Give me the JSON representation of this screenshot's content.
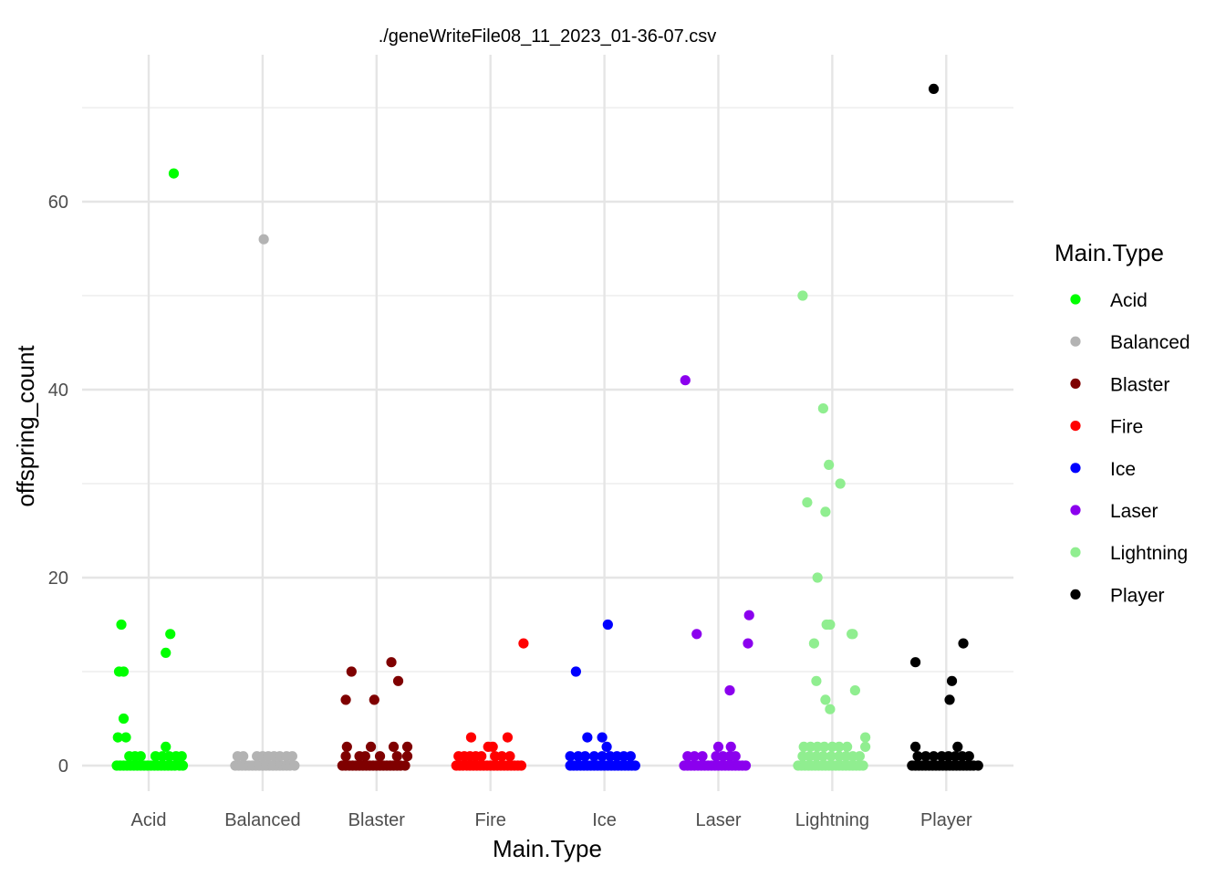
{
  "chart_data": {
    "type": "scatter",
    "title": "./geneWriteFile08_11_2023_01-36-07.csv",
    "xlabel": "Main.Type",
    "ylabel": "offspring_count",
    "categories": [
      "Acid",
      "Balanced",
      "Blaster",
      "Fire",
      "Ice",
      "Laser",
      "Lightning",
      "Player"
    ],
    "yticks": [
      0,
      20,
      40,
      60
    ],
    "ylim": [
      -2.8,
      75
    ],
    "grid": true,
    "legend": {
      "title": "Main.Type",
      "placement": "right",
      "items": [
        {
          "label": "Acid",
          "color": "#00ff00"
        },
        {
          "label": "Balanced",
          "color": "#b3b3b3"
        },
        {
          "label": "Blaster",
          "color": "#7f0000"
        },
        {
          "label": "Fire",
          "color": "#ff0000"
        },
        {
          "label": "Ice",
          "color": "#0000ff"
        },
        {
          "label": "Laser",
          "color": "#8b00ee"
        },
        {
          "label": "Lightning",
          "color": "#90ee90"
        },
        {
          "label": "Player",
          "color": "#000000"
        }
      ]
    },
    "series": [
      {
        "name": "Acid",
        "color": "#00ff00",
        "points": [
          [
            0.22,
            63
          ],
          [
            -0.24,
            15
          ],
          [
            0.19,
            14
          ],
          [
            0.15,
            12
          ],
          [
            -0.26,
            10
          ],
          [
            -0.22,
            10
          ],
          [
            -0.22,
            5
          ],
          [
            -0.27,
            3
          ],
          [
            -0.2,
            3
          ],
          [
            0.15,
            2
          ],
          [
            -0.28,
            0
          ],
          [
            -0.25,
            0
          ],
          [
            -0.22,
            0
          ],
          [
            -0.19,
            0
          ],
          [
            -0.16,
            0
          ],
          [
            -0.13,
            0
          ],
          [
            -0.1,
            0
          ],
          [
            -0.07,
            0
          ],
          [
            -0.04,
            0
          ],
          [
            -0.01,
            0
          ],
          [
            0.02,
            0
          ],
          [
            0.05,
            0
          ],
          [
            0.08,
            0
          ],
          [
            0.11,
            0
          ],
          [
            0.14,
            0
          ],
          [
            0.17,
            0
          ],
          [
            0.2,
            0
          ],
          [
            0.23,
            0
          ],
          [
            0.27,
            0
          ],
          [
            0.3,
            0
          ],
          [
            -0.17,
            1
          ],
          [
            -0.12,
            1
          ],
          [
            -0.07,
            1
          ],
          [
            0.06,
            1
          ],
          [
            0.12,
            1
          ],
          [
            0.18,
            1
          ],
          [
            0.24,
            1
          ],
          [
            0.29,
            1
          ]
        ]
      },
      {
        "name": "Balanced",
        "color": "#b3b3b3",
        "points": [
          [
            0.01,
            56
          ],
          [
            -0.24,
            0
          ],
          [
            -0.21,
            0
          ],
          [
            -0.18,
            0
          ],
          [
            -0.15,
            0
          ],
          [
            -0.12,
            0
          ],
          [
            -0.09,
            0
          ],
          [
            -0.06,
            0
          ],
          [
            -0.03,
            0
          ],
          [
            0.0,
            0
          ],
          [
            0.03,
            0
          ],
          [
            0.06,
            0
          ],
          [
            0.09,
            0
          ],
          [
            0.12,
            0
          ],
          [
            0.15,
            0
          ],
          [
            0.18,
            0
          ],
          [
            0.21,
            0
          ],
          [
            0.24,
            0
          ],
          [
            0.28,
            0
          ],
          [
            -0.22,
            1
          ],
          [
            -0.17,
            1
          ],
          [
            -0.05,
            1
          ],
          [
            0.0,
            1
          ],
          [
            0.05,
            1
          ],
          [
            0.1,
            1
          ],
          [
            0.15,
            1
          ],
          [
            0.21,
            1
          ],
          [
            0.26,
            1
          ]
        ]
      },
      {
        "name": "Blaster",
        "color": "#7f0000",
        "points": [
          [
            0.13,
            11
          ],
          [
            -0.22,
            10
          ],
          [
            0.19,
            9
          ],
          [
            -0.27,
            7
          ],
          [
            -0.02,
            7
          ],
          [
            -0.26,
            2
          ],
          [
            -0.05,
            2
          ],
          [
            0.15,
            2
          ],
          [
            0.27,
            2
          ],
          [
            -0.3,
            0
          ],
          [
            -0.27,
            0
          ],
          [
            -0.24,
            0
          ],
          [
            -0.21,
            0
          ],
          [
            -0.18,
            0
          ],
          [
            -0.15,
            0
          ],
          [
            -0.12,
            0
          ],
          [
            -0.09,
            0
          ],
          [
            -0.06,
            0
          ],
          [
            -0.03,
            0
          ],
          [
            0.0,
            0
          ],
          [
            0.03,
            0
          ],
          [
            0.06,
            0
          ],
          [
            0.09,
            0
          ],
          [
            0.12,
            0
          ],
          [
            0.15,
            0
          ],
          [
            0.18,
            0
          ],
          [
            0.21,
            0
          ],
          [
            0.25,
            0
          ],
          [
            -0.27,
            1
          ],
          [
            -0.15,
            1
          ],
          [
            -0.1,
            1
          ],
          [
            0.03,
            1
          ],
          [
            0.18,
            1
          ],
          [
            0.27,
            1
          ]
        ]
      },
      {
        "name": "Fire",
        "color": "#ff0000",
        "points": [
          [
            0.29,
            13
          ],
          [
            -0.17,
            3
          ],
          [
            0.15,
            3
          ],
          [
            -0.02,
            2
          ],
          [
            0.02,
            2
          ],
          [
            -0.3,
            0
          ],
          [
            -0.27,
            0
          ],
          [
            -0.24,
            0
          ],
          [
            -0.21,
            0
          ],
          [
            -0.18,
            0
          ],
          [
            -0.15,
            0
          ],
          [
            -0.12,
            0
          ],
          [
            -0.09,
            0
          ],
          [
            -0.06,
            0
          ],
          [
            -0.03,
            0
          ],
          [
            0.0,
            0
          ],
          [
            0.03,
            0
          ],
          [
            0.06,
            0
          ],
          [
            0.09,
            0
          ],
          [
            0.12,
            0
          ],
          [
            0.15,
            0
          ],
          [
            0.18,
            0
          ],
          [
            0.21,
            0
          ],
          [
            0.24,
            0
          ],
          [
            0.27,
            0
          ],
          [
            -0.28,
            1
          ],
          [
            -0.23,
            1
          ],
          [
            -0.18,
            1
          ],
          [
            -0.13,
            1
          ],
          [
            -0.08,
            1
          ],
          [
            0.04,
            1
          ],
          [
            0.1,
            1
          ],
          [
            0.17,
            1
          ]
        ]
      },
      {
        "name": "Ice",
        "color": "#0000ff",
        "points": [
          [
            0.03,
            15
          ],
          [
            -0.25,
            10
          ],
          [
            -0.15,
            3
          ],
          [
            -0.02,
            3
          ],
          [
            0.02,
            2
          ],
          [
            -0.3,
            0
          ],
          [
            -0.27,
            0
          ],
          [
            -0.24,
            0
          ],
          [
            -0.21,
            0
          ],
          [
            -0.18,
            0
          ],
          [
            -0.15,
            0
          ],
          [
            -0.12,
            0
          ],
          [
            -0.09,
            0
          ],
          [
            -0.06,
            0
          ],
          [
            -0.03,
            0
          ],
          [
            0.0,
            0
          ],
          [
            0.03,
            0
          ],
          [
            0.06,
            0
          ],
          [
            0.09,
            0
          ],
          [
            0.12,
            0
          ],
          [
            0.15,
            0
          ],
          [
            0.18,
            0
          ],
          [
            0.21,
            0
          ],
          [
            0.24,
            0
          ],
          [
            0.27,
            0
          ],
          [
            -0.3,
            1
          ],
          [
            -0.23,
            1
          ],
          [
            -0.17,
            1
          ],
          [
            -0.09,
            1
          ],
          [
            -0.02,
            1
          ],
          [
            0.05,
            1
          ],
          [
            0.11,
            1
          ],
          [
            0.17,
            1
          ],
          [
            0.23,
            1
          ]
        ]
      },
      {
        "name": "Laser",
        "color": "#8b00ee",
        "points": [
          [
            -0.29,
            41
          ],
          [
            0.27,
            16
          ],
          [
            -0.19,
            14
          ],
          [
            0.26,
            13
          ],
          [
            0.1,
            8
          ],
          [
            0.0,
            2
          ],
          [
            0.11,
            2
          ],
          [
            -0.3,
            0
          ],
          [
            -0.27,
            0
          ],
          [
            -0.24,
            0
          ],
          [
            -0.21,
            0
          ],
          [
            -0.18,
            0
          ],
          [
            -0.15,
            0
          ],
          [
            -0.12,
            0
          ],
          [
            -0.09,
            0
          ],
          [
            -0.06,
            0
          ],
          [
            -0.03,
            0
          ],
          [
            0.0,
            0
          ],
          [
            0.03,
            0
          ],
          [
            0.06,
            0
          ],
          [
            0.09,
            0
          ],
          [
            0.12,
            0
          ],
          [
            0.15,
            0
          ],
          [
            0.18,
            0
          ],
          [
            0.21,
            0
          ],
          [
            0.24,
            0
          ],
          [
            -0.27,
            1
          ],
          [
            -0.21,
            1
          ],
          [
            -0.14,
            1
          ],
          [
            -0.02,
            1
          ],
          [
            0.04,
            1
          ],
          [
            0.1,
            1
          ],
          [
            0.15,
            1
          ]
        ]
      },
      {
        "name": "Lightning",
        "color": "#90ee90",
        "points": [
          [
            -0.26,
            50
          ],
          [
            -0.08,
            38
          ],
          [
            -0.03,
            32
          ],
          [
            0.07,
            30
          ],
          [
            -0.22,
            28
          ],
          [
            -0.06,
            27
          ],
          [
            -0.13,
            20
          ],
          [
            -0.05,
            15
          ],
          [
            -0.02,
            15
          ],
          [
            0.18,
            14
          ],
          [
            0.17,
            14
          ],
          [
            -0.16,
            13
          ],
          [
            -0.14,
            9
          ],
          [
            0.2,
            8
          ],
          [
            -0.06,
            7
          ],
          [
            -0.02,
            6
          ],
          [
            0.29,
            3
          ],
          [
            0.29,
            2
          ],
          [
            -0.3,
            0
          ],
          [
            -0.27,
            0
          ],
          [
            -0.24,
            0
          ],
          [
            -0.21,
            0
          ],
          [
            -0.18,
            0
          ],
          [
            -0.15,
            0
          ],
          [
            -0.12,
            0
          ],
          [
            -0.09,
            0
          ],
          [
            -0.06,
            0
          ],
          [
            -0.03,
            0
          ],
          [
            0.0,
            0
          ],
          [
            0.03,
            0
          ],
          [
            0.06,
            0
          ],
          [
            0.09,
            0
          ],
          [
            0.12,
            0
          ],
          [
            0.15,
            0
          ],
          [
            0.18,
            0
          ],
          [
            0.21,
            0
          ],
          [
            0.24,
            0
          ],
          [
            0.27,
            0
          ],
          [
            -0.26,
            1
          ],
          [
            -0.2,
            1
          ],
          [
            -0.14,
            1
          ],
          [
            -0.08,
            1
          ],
          [
            -0.01,
            1
          ],
          [
            0.06,
            1
          ],
          [
            0.12,
            1
          ],
          [
            0.18,
            1
          ],
          [
            0.24,
            1
          ],
          [
            -0.25,
            2
          ],
          [
            -0.19,
            2
          ],
          [
            -0.13,
            2
          ],
          [
            -0.07,
            2
          ],
          [
            0.0,
            2
          ],
          [
            0.06,
            2
          ],
          [
            0.13,
            2
          ]
        ]
      },
      {
        "name": "Player",
        "color": "#000000",
        "points": [
          [
            -0.11,
            72
          ],
          [
            0.15,
            13
          ],
          [
            -0.27,
            11
          ],
          [
            0.05,
            9
          ],
          [
            0.03,
            7
          ],
          [
            -0.27,
            2
          ],
          [
            0.1,
            2
          ],
          [
            -0.3,
            0
          ],
          [
            -0.27,
            0
          ],
          [
            -0.24,
            0
          ],
          [
            -0.21,
            0
          ],
          [
            -0.18,
            0
          ],
          [
            -0.15,
            0
          ],
          [
            -0.12,
            0
          ],
          [
            -0.09,
            0
          ],
          [
            -0.06,
            0
          ],
          [
            -0.03,
            0
          ],
          [
            0.0,
            0
          ],
          [
            0.03,
            0
          ],
          [
            0.06,
            0
          ],
          [
            0.09,
            0
          ],
          [
            0.12,
            0
          ],
          [
            0.15,
            0
          ],
          [
            0.18,
            0
          ],
          [
            0.21,
            0
          ],
          [
            0.24,
            0
          ],
          [
            0.28,
            0
          ],
          [
            -0.25,
            1
          ],
          [
            -0.18,
            1
          ],
          [
            -0.11,
            1
          ],
          [
            -0.04,
            1
          ],
          [
            0.02,
            1
          ],
          [
            0.08,
            1
          ],
          [
            0.14,
            1
          ],
          [
            0.2,
            1
          ]
        ]
      }
    ]
  }
}
